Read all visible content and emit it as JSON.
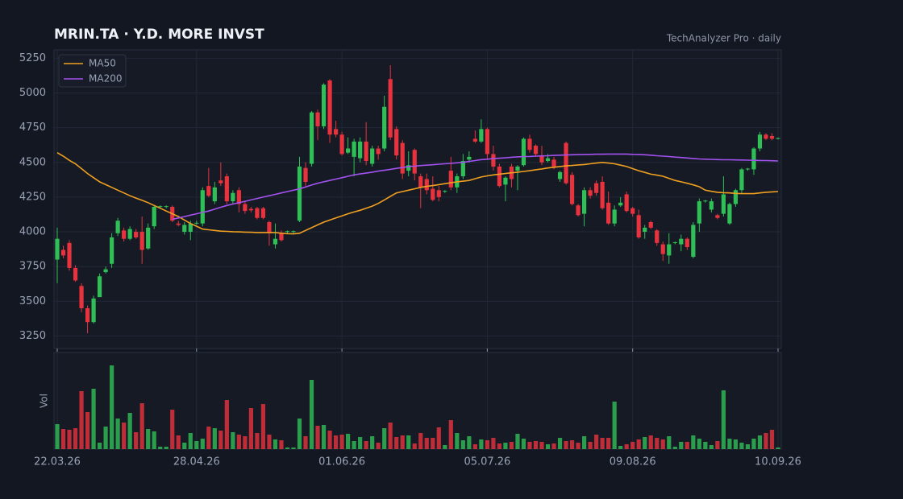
{
  "chart_data": {
    "type": "candlestick",
    "title": "MRIN.TA  ·  Y.D. MORE INVST",
    "subtitle": "TechAnalyzer Pro · daily",
    "categories": [
      "22.03.26",
      null,
      null,
      null,
      null,
      null,
      null,
      null,
      null,
      null,
      null,
      null,
      null,
      null,
      null,
      null,
      null,
      null,
      null,
      null,
      null,
      null,
      null,
      "28.04.26",
      null,
      null,
      null,
      null,
      null,
      null,
      null,
      null,
      null,
      null,
      null,
      null,
      null,
      null,
      null,
      null,
      null,
      null,
      null,
      null,
      null,
      null,
      null,
      "01.06.26",
      null,
      null,
      null,
      null,
      null,
      null,
      null,
      null,
      null,
      null,
      null,
      null,
      null,
      null,
      null,
      null,
      null,
      null,
      null,
      null,
      null,
      null,
      null,
      "05.07.26",
      null,
      null,
      null,
      null,
      null,
      null,
      null,
      null,
      null,
      null,
      null,
      null,
      null,
      null,
      null,
      null,
      null,
      null,
      null,
      null,
      null,
      null,
      null,
      "09.08.26",
      null,
      null,
      null,
      null,
      null,
      null,
      null,
      null,
      null,
      null,
      null,
      null,
      null,
      null,
      null,
      null,
      null,
      null,
      null,
      null,
      null,
      null,
      null,
      "10.09.26"
    ],
    "open": [
      3800,
      3870,
      3920,
      3740,
      3610,
      3450,
      3350,
      3530,
      3710,
      3770,
      3990,
      4010,
      3950,
      4000,
      4000,
      3880,
      4040,
      4180,
      4180,
      4180,
      4060,
      4000,
      4000,
      4060,
      4060,
      4330,
      4220,
      4370,
      4400,
      4220,
      4300,
      4200,
      4165,
      4170,
      4170,
      4070,
      3910,
      3990,
      4000,
      4000,
      4080,
      4460,
      4490,
      4860,
      4760,
      5090,
      4740,
      4700,
      4570,
      4540,
      4530,
      4650,
      4490,
      4600,
      4600,
      5100,
      4740,
      4640,
      4440,
      4590,
      4400,
      4380,
      4310,
      4300,
      4290,
      4440,
      4320,
      4400,
      4520,
      4670,
      4650,
      4740,
      4560,
      4470,
      4340,
      4470,
      4440,
      4480,
      4670,
      4620,
      4550,
      4510,
      4520,
      4380,
      4640,
      4410,
      4190,
      4130,
      4300,
      4350,
      4360,
      4210,
      4060,
      4190,
      4270,
      4170,
      4120,
      4000,
      4070,
      4010,
      3910,
      3830,
      3920,
      3910,
      3950,
      3820,
      4060,
      4220,
      4160,
      4120,
      4130,
      4060,
      4200,
      4300,
      4450,
      4450,
      4600,
      4700,
      4690,
      4670
    ],
    "high": [
      4030,
      3900,
      3940,
      3760,
      3630,
      3470,
      3540,
      3700,
      3750,
      3990,
      4100,
      4030,
      4040,
      4020,
      4110,
      4060,
      4190,
      4190,
      4190,
      4190,
      4080,
      4070,
      4080,
      4080,
      4320,
      4460,
      4360,
      4500,
      4420,
      4300,
      4320,
      4220,
      4180,
      4180,
      4180,
      4080,
      4060,
      4010,
      4010,
      4010,
      4540,
      4500,
      4870,
      4880,
      5070,
      5100,
      4800,
      4720,
      4680,
      4670,
      4680,
      4790,
      4620,
      4620,
      4980,
      5200,
      4760,
      4660,
      4580,
      4600,
      4420,
      4420,
      4400,
      4330,
      4300,
      4540,
      4420,
      4560,
      4580,
      4730,
      4810,
      4750,
      4620,
      4490,
      4400,
      4490,
      4480,
      4680,
      4700,
      4630,
      4620,
      4560,
      4540,
      4440,
      4650,
      4430,
      4200,
      4320,
      4320,
      4370,
      4400,
      4290,
      4190,
      4250,
      4290,
      4180,
      4160,
      4050,
      4080,
      4020,
      3930,
      3990,
      3930,
      3980,
      3960,
      4070,
      4240,
      4230,
      4240,
      4130,
      4400,
      4210,
      4310,
      4460,
      4460,
      4610,
      4720,
      4710,
      4710,
      4680
    ],
    "low": [
      3630,
      3810,
      3720,
      3640,
      3420,
      3270,
      3340,
      3550,
      3700,
      3740,
      3970,
      3930,
      3940,
      3950,
      3770,
      3870,
      4020,
      4170,
      4170,
      4070,
      4040,
      3980,
      3940,
      4050,
      4040,
      4250,
      4200,
      4330,
      4200,
      4200,
      4140,
      4130,
      4140,
      4090,
      4090,
      3900,
      3880,
      3930,
      3990,
      3990,
      4070,
      4330,
      4470,
      4660,
      4740,
      4640,
      4680,
      4550,
      4560,
      4400,
      4500,
      4480,
      4470,
      4520,
      4580,
      4660,
      4520,
      4380,
      4400,
      4370,
      4170,
      4270,
      4220,
      4220,
      4280,
      4300,
      4280,
      4380,
      4500,
      4640,
      4640,
      4520,
      4440,
      4320,
      4220,
      4320,
      4300,
      4470,
      4570,
      4540,
      4480,
      4500,
      4450,
      4360,
      4340,
      4190,
      4110,
      4040,
      4240,
      4260,
      4160,
      4050,
      4040,
      4180,
      4140,
      4110,
      3950,
      3950,
      4020,
      3900,
      3790,
      3770,
      3910,
      3860,
      3870,
      3810,
      4000,
      4210,
      4140,
      4090,
      4110,
      4050,
      4180,
      4280,
      4440,
      4410,
      4580,
      4660,
      4660,
      4665
    ],
    "close": [
      3950,
      3830,
      3740,
      3650,
      3450,
      3350,
      3520,
      3680,
      3730,
      3960,
      4080,
      3950,
      4020,
      3960,
      3870,
      4030,
      4180,
      4185,
      4185,
      4080,
      4050,
      4050,
      4060,
      4065,
      4300,
      4260,
      4320,
      4350,
      4220,
      4280,
      4200,
      4150,
      4155,
      4100,
      4100,
      3990,
      3950,
      3940,
      4005,
      4005,
      4470,
      4360,
      4860,
      4760,
      5060,
      4700,
      4700,
      4560,
      4600,
      4650,
      4650,
      4510,
      4600,
      4560,
      4900,
      4680,
      4550,
      4420,
      4480,
      4420,
      4320,
      4300,
      4230,
      4250,
      4295,
      4320,
      4400,
      4510,
      4540,
      4650,
      4740,
      4560,
      4470,
      4330,
      4390,
      4380,
      4470,
      4670,
      4590,
      4560,
      4500,
      4530,
      4470,
      4430,
      4350,
      4200,
      4120,
      4300,
      4260,
      4280,
      4170,
      4060,
      4160,
      4210,
      4150,
      4130,
      3960,
      4030,
      4030,
      3920,
      3840,
      3910,
      3925,
      3950,
      3890,
      4050,
      4220,
      4225,
      4220,
      4100,
      4270,
      4200,
      4300,
      4450,
      4455,
      4600,
      4700,
      4670,
      4670,
      4675
    ],
    "up_color": "#2fbf56",
    "down_color": "#e8323d",
    "ylim": [
      3160,
      5310
    ],
    "yticks": [
      3250,
      3500,
      3750,
      4000,
      4250,
      4500,
      4750,
      5000,
      5250
    ],
    "grid": true,
    "legend": "upper left",
    "series": [
      {
        "name": "MA50",
        "color": "#f0a020",
        "values": [
          4570,
          4545,
          4515,
          4490,
          4455,
          4420,
          4390,
          4360,
          4340,
          4320,
          4300,
          4280,
          4260,
          4243,
          4227,
          4210,
          4190,
          4170,
          4150,
          4130,
          4110,
          4085,
          4060,
          4040,
          4020,
          4015,
          4010,
          4005,
          4003,
          4001,
          4000,
          3998,
          3997,
          3995,
          3995,
          3995,
          3995,
          3990,
          3987,
          3985,
          3990,
          4010,
          4030,
          4050,
          4070,
          4085,
          4100,
          4115,
          4130,
          4143,
          4155,
          4170,
          4185,
          4205,
          4230,
          4255,
          4280,
          4290,
          4300,
          4310,
          4320,
          4327,
          4333,
          4340,
          4347,
          4353,
          4360,
          4365,
          4370,
          4383,
          4395,
          4403,
          4410,
          4415,
          4420,
          4425,
          4430,
          4435,
          4440,
          4447,
          4453,
          4460,
          4465,
          4470,
          4475,
          4478,
          4482,
          4485,
          4490,
          4495,
          4500,
          4495,
          4490,
          4480,
          4470,
          4455,
          4440,
          4428,
          4415,
          4408,
          4400,
          4385,
          4370,
          4360,
          4350,
          4338,
          4325,
          4300,
          4292,
          4285,
          4282,
          4280,
          4277,
          4275,
          4275,
          4275,
          4280,
          4285,
          4288,
          4290
        ]
      },
      {
        "name": "MA200",
        "color": "#a352f0",
        "values": [
          null,
          null,
          null,
          null,
          null,
          null,
          null,
          null,
          null,
          null,
          null,
          null,
          null,
          null,
          null,
          null,
          null,
          null,
          null,
          4090,
          4100,
          4110,
          4120,
          4130,
          4140,
          4150,
          4163,
          4177,
          4190,
          4200,
          4210,
          4220,
          4230,
          4240,
          4250,
          4260,
          4270,
          4280,
          4290,
          4300,
          4310,
          4323,
          4337,
          4350,
          4360,
          4370,
          4380,
          4390,
          4400,
          4410,
          4417,
          4423,
          4430,
          4437,
          4443,
          4450,
          4457,
          4463,
          4470,
          4473,
          4477,
          4480,
          4483,
          4487,
          4490,
          4493,
          4497,
          4500,
          4507,
          4513,
          4520,
          4523,
          4527,
          4530,
          4533,
          4537,
          4540,
          4542,
          4543,
          4545,
          4547,
          4548,
          4550,
          4552,
          4553,
          4555,
          4556,
          4557,
          4558,
          4559,
          4559,
          4560,
          4560,
          4560,
          4560,
          4558,
          4557,
          4555,
          4552,
          4548,
          4545,
          4542,
          4538,
          4535,
          4532,
          4528,
          4525,
          4523,
          4522,
          4520,
          4519,
          4519,
          4518,
          4517,
          4516,
          4515,
          4514,
          4513,
          4512,
          4510
        ]
      }
    ],
    "volume": {
      "label": "Vol",
      "ylim": [
        0,
        120
      ],
      "values": [
        31,
        25,
        24,
        26,
        72,
        46,
        75,
        8,
        28,
        104,
        38,
        33,
        45,
        21,
        57,
        25,
        22,
        3,
        3,
        49,
        17,
        8,
        20,
        10,
        13,
        28,
        26,
        23,
        61,
        21,
        18,
        16,
        51,
        20,
        56,
        18,
        12,
        11,
        2,
        2,
        38,
        16,
        86,
        29,
        30,
        23,
        17,
        18,
        19,
        10,
        15,
        10,
        16,
        8,
        26,
        33,
        15,
        17,
        17,
        7,
        20,
        14,
        14,
        27,
        5,
        36,
        20,
        11,
        16,
        6,
        12,
        11,
        14,
        7,
        8,
        9,
        19,
        13,
        9,
        10,
        9,
        6,
        7,
        14,
        10,
        11,
        8,
        16,
        9,
        18,
        14,
        14,
        59,
        4,
        6,
        9,
        12,
        15,
        17,
        14,
        12,
        16,
        3,
        9,
        9,
        17,
        13,
        9,
        5,
        10,
        73,
        13,
        12,
        8,
        6,
        13,
        17,
        20,
        24,
        2
      ]
    }
  }
}
